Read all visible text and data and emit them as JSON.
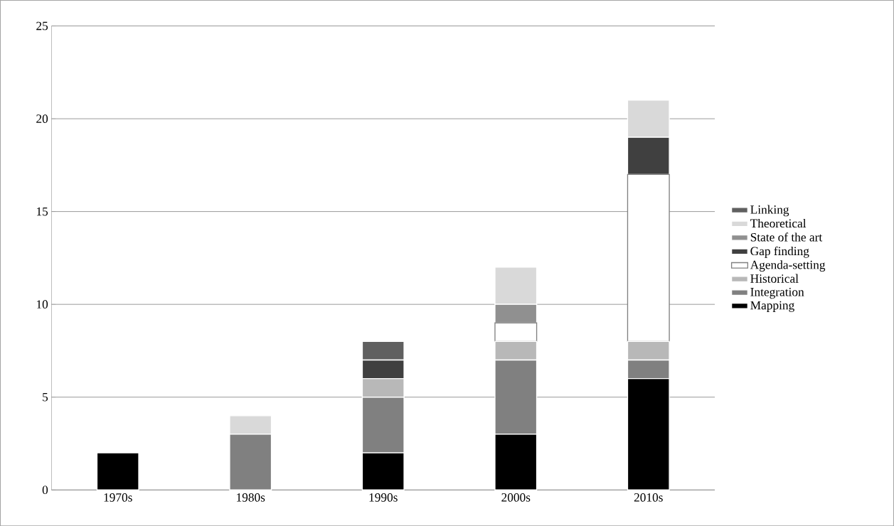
{
  "chart_data": {
    "type": "bar",
    "stacked": true,
    "categories": [
      "1970s",
      "1980s",
      "1990s",
      "2000s",
      "2010s"
    ],
    "series": [
      {
        "name": "Mapping",
        "color": "#000000",
        "values": [
          2,
          0,
          2,
          3,
          6
        ]
      },
      {
        "name": "Integration",
        "color": "#808080",
        "values": [
          0,
          3,
          3,
          4,
          1
        ]
      },
      {
        "name": "Historical",
        "color": "#b8b8b8",
        "values": [
          0,
          0,
          1,
          1,
          1
        ]
      },
      {
        "name": "Agenda-setting",
        "color": "#ffffff",
        "values": [
          0,
          0,
          0,
          1,
          9
        ]
      },
      {
        "name": "Gap finding",
        "color": "#404040",
        "values": [
          0,
          0,
          1,
          0,
          2
        ]
      },
      {
        "name": "State of the art",
        "color": "#909090",
        "values": [
          0,
          0,
          0,
          1,
          0
        ]
      },
      {
        "name": "Theoretical",
        "color": "#d9d9d9",
        "values": [
          0,
          1,
          0,
          2,
          2
        ]
      },
      {
        "name": "Linking",
        "color": "#606060",
        "values": [
          0,
          0,
          1,
          0,
          0
        ]
      }
    ],
    "ylim": [
      0,
      25
    ],
    "yticks": [
      0,
      5,
      10,
      15,
      20,
      25
    ],
    "grid": "y",
    "legend": "right"
  }
}
